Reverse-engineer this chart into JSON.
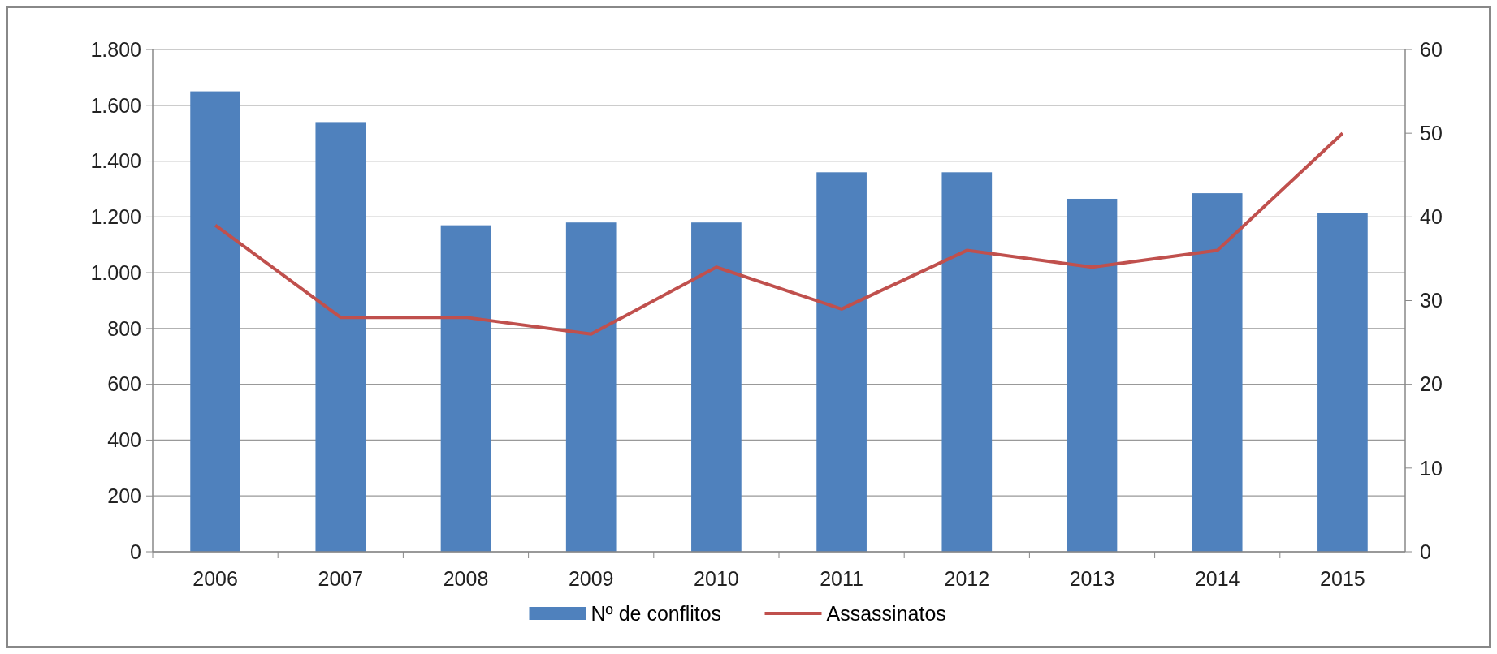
{
  "chart_data": {
    "type": "bar",
    "categories": [
      "2006",
      "2007",
      "2008",
      "2009",
      "2010",
      "2011",
      "2012",
      "2013",
      "2014",
      "2015"
    ],
    "series": [
      {
        "name": "Nº de conflitos",
        "color": "#4f81bd",
        "values": [
          1650,
          1540,
          1170,
          1180,
          1180,
          1360,
          1360,
          1265,
          1285,
          1215
        ]
      },
      {
        "name": "Assassinatos",
        "type": "line",
        "axis": "y2",
        "color": "#c0504d",
        "values": [
          39,
          28,
          28,
          26,
          34,
          29,
          36,
          34,
          36,
          50
        ]
      }
    ],
    "ylim": [
      0,
      1800
    ],
    "yticks": [
      0,
      200,
      400,
      600,
      {
        "value": 800,
        "label": "800"
      },
      {
        "value": 1000,
        "label": "1.000"
      },
      {
        "value": 1200,
        "label": "1.200"
      },
      {
        "value": 1400,
        "label": "1.400"
      },
      {
        "value": 1600,
        "label": "1.600"
      },
      {
        "value": 1800,
        "label": "1.800"
      }
    ],
    "y2lim": [
      0,
      60
    ],
    "y2ticks": [
      0,
      10,
      20,
      30,
      40,
      50,
      60
    ],
    "grid": "y",
    "legend": "bottom",
    "marker": "none",
    "line_style": "solid"
  }
}
